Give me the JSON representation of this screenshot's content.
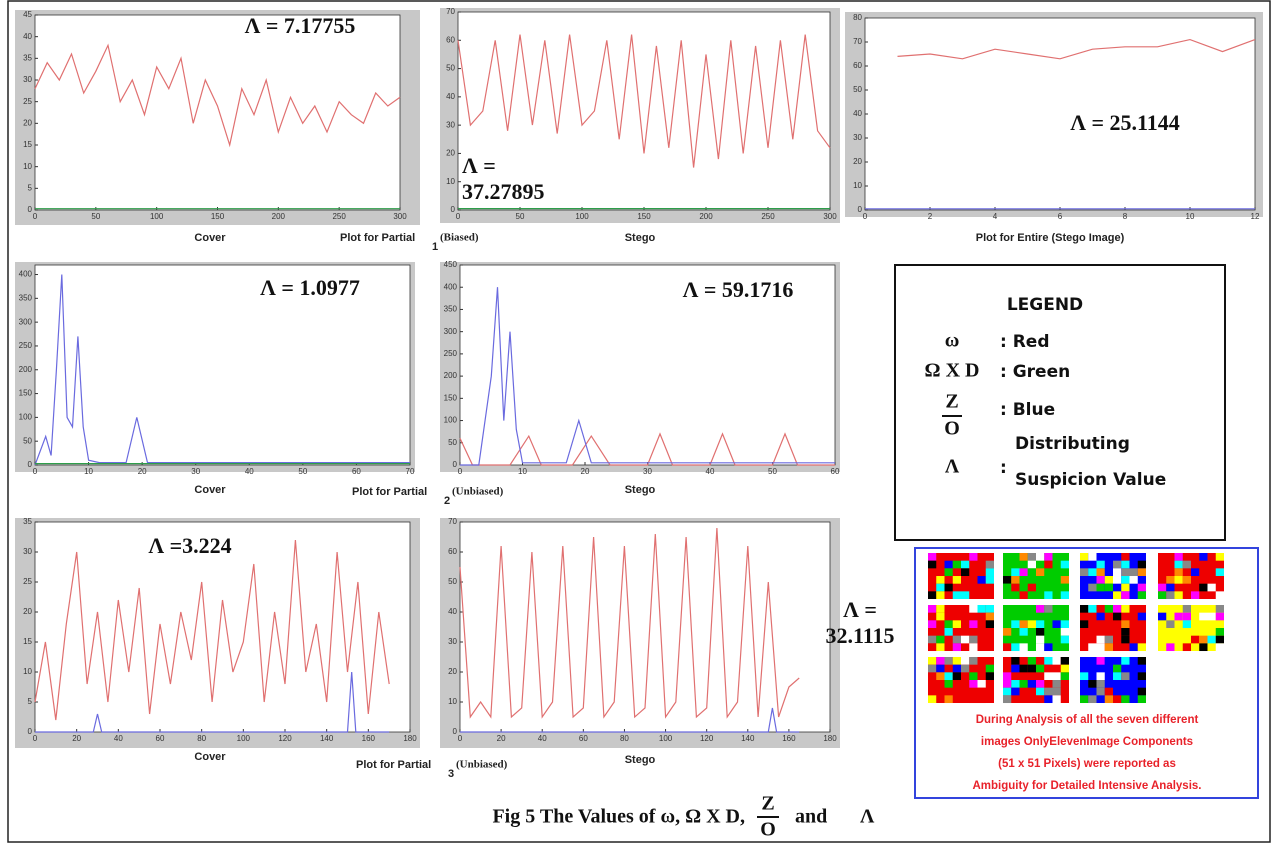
{
  "chart_data": [
    {
      "type": "line",
      "xlabel": "Cover",
      "annotation": [
        "Λ = 7.17755"
      ],
      "xlim": [
        0,
        300
      ],
      "ylim": [
        0,
        45
      ],
      "xticks": [
        0,
        50,
        100,
        150,
        200,
        250,
        300
      ],
      "yticks": [
        0,
        5,
        10,
        15,
        20,
        25,
        30,
        35,
        40,
        45
      ],
      "series": [
        {
          "color": "#e07070",
          "x": [
            0,
            10,
            20,
            30,
            40,
            50,
            60,
            70,
            80,
            90,
            100,
            110,
            120,
            130,
            140,
            150,
            160,
            170,
            180,
            190,
            200,
            210,
            220,
            230,
            240,
            250,
            260,
            270,
            280,
            290,
            300
          ],
          "values": [
            28,
            34,
            30,
            36,
            27,
            32,
            38,
            25,
            30,
            22,
            33,
            28,
            35,
            20,
            30,
            24,
            15,
            28,
            22,
            30,
            18,
            26,
            20,
            24,
            18,
            25,
            22,
            20,
            27,
            24,
            26
          ]
        },
        {
          "color": "#2e9e4a",
          "x": [
            0,
            300
          ],
          "values": [
            0.3,
            0.3
          ]
        }
      ]
    },
    {
      "type": "line",
      "xlabel": "Stego",
      "annotation": [
        "Λ =",
        "37.27895"
      ],
      "xlim": [
        0,
        300
      ],
      "ylim": [
        0,
        70
      ],
      "xticks": [
        0,
        50,
        100,
        150,
        200,
        250,
        300
      ],
      "yticks": [
        0,
        10,
        20,
        30,
        40,
        50,
        60,
        70
      ],
      "series": [
        {
          "color": "#e07070",
          "x": [
            0,
            10,
            20,
            30,
            40,
            50,
            60,
            70,
            80,
            90,
            100,
            110,
            120,
            130,
            140,
            150,
            160,
            170,
            180,
            190,
            200,
            210,
            220,
            230,
            240,
            250,
            260,
            270,
            280,
            290,
            300
          ],
          "values": [
            60,
            30,
            35,
            60,
            28,
            62,
            30,
            60,
            27,
            62,
            30,
            35,
            60,
            25,
            62,
            20,
            58,
            22,
            60,
            15,
            55,
            18,
            60,
            20,
            58,
            22,
            60,
            25,
            62,
            28,
            22
          ]
        },
        {
          "color": "#2e9e4a",
          "x": [
            0,
            300
          ],
          "values": [
            0.5,
            0.5
          ]
        }
      ]
    },
    {
      "type": "line",
      "xlabel": "Plot for Entire (Stego Image)",
      "annotation": [
        "Λ = 25.1144"
      ],
      "xlim": [
        0,
        12
      ],
      "ylim": [
        0,
        80
      ],
      "xticks": [
        0,
        2,
        4,
        6,
        8,
        10,
        12
      ],
      "yticks": [
        0,
        10,
        20,
        30,
        40,
        50,
        60,
        70,
        80
      ],
      "series": [
        {
          "color": "#e07070",
          "x": [
            1,
            2,
            3,
            4,
            5,
            6,
            7,
            8,
            9,
            10,
            11,
            12
          ],
          "values": [
            64,
            65,
            63,
            67,
            65,
            63,
            67,
            68,
            68,
            71,
            66,
            71
          ]
        },
        {
          "color": "#6a6adf",
          "x": [
            0,
            12
          ],
          "values": [
            0.5,
            0.5
          ]
        }
      ]
    },
    {
      "type": "line",
      "xlabel": "Cover",
      "annotation": [
        "Λ = 1.0977"
      ],
      "xlim": [
        0,
        70
      ],
      "ylim": [
        0,
        420
      ],
      "xticks": [
        0,
        10,
        20,
        30,
        40,
        50,
        60,
        70
      ],
      "yticks": [
        0,
        50,
        100,
        150,
        200,
        250,
        300,
        350,
        400
      ],
      "series": [
        {
          "color": "#6a6adf",
          "x": [
            0,
            2,
            3,
            4,
            5,
            6,
            7,
            8,
            9,
            10,
            12,
            17,
            19,
            21,
            25,
            70
          ],
          "values": [
            0,
            60,
            20,
            200,
            400,
            100,
            80,
            270,
            80,
            10,
            5,
            5,
            100,
            5,
            5,
            5
          ]
        },
        {
          "color": "#2e9e4a",
          "x": [
            0,
            70
          ],
          "values": [
            3,
            3
          ]
        }
      ]
    },
    {
      "type": "line",
      "xlabel": "Stego",
      "annotation": [
        "Λ = 59.1716"
      ],
      "xlim": [
        0,
        60
      ],
      "ylim": [
        0,
        450
      ],
      "xticks": [
        0,
        10,
        20,
        30,
        40,
        50,
        60
      ],
      "yticks": [
        0,
        50,
        100,
        150,
        200,
        250,
        300,
        350,
        400,
        450
      ],
      "series": [
        {
          "color": "#e07070",
          "x": [
            0,
            2,
            4,
            8,
            11,
            13,
            15,
            18,
            21,
            24,
            27,
            30,
            32,
            34,
            37,
            40,
            42,
            44,
            47,
            50,
            52,
            54,
            57,
            60
          ],
          "values": [
            60,
            0,
            0,
            0,
            65,
            0,
            0,
            0,
            65,
            0,
            0,
            0,
            70,
            0,
            0,
            0,
            70,
            0,
            0,
            0,
            70,
            0,
            0,
            0
          ]
        },
        {
          "color": "#6a6adf",
          "x": [
            0,
            3,
            5,
            6,
            7,
            8,
            9,
            10,
            12,
            17,
            19,
            21,
            60
          ],
          "values": [
            0,
            0,
            200,
            400,
            100,
            300,
            80,
            5,
            5,
            5,
            100,
            5,
            5
          ]
        }
      ]
    },
    {
      "type": "line",
      "xlabel": "Cover",
      "annotation": [
        "Λ =3.224"
      ],
      "xlim": [
        0,
        180
      ],
      "ylim": [
        0,
        35
      ],
      "xticks": [
        0,
        20,
        40,
        60,
        80,
        100,
        120,
        140,
        160,
        180
      ],
      "yticks": [
        0,
        5,
        10,
        15,
        20,
        25,
        30,
        35
      ],
      "series": [
        {
          "color": "#e07070",
          "x": [
            0,
            5,
            10,
            15,
            20,
            25,
            30,
            35,
            40,
            45,
            50,
            55,
            60,
            65,
            70,
            75,
            80,
            85,
            90,
            95,
            100,
            105,
            110,
            115,
            120,
            125,
            130,
            135,
            140,
            145,
            150,
            155,
            160,
            165,
            170
          ],
          "values": [
            5,
            15,
            2,
            18,
            30,
            8,
            20,
            5,
            22,
            10,
            24,
            3,
            18,
            8,
            20,
            12,
            25,
            5,
            22,
            10,
            15,
            28,
            5,
            20,
            8,
            32,
            10,
            18,
            5,
            30,
            10,
            25,
            3,
            20,
            8
          ]
        },
        {
          "color": "#6a6adf",
          "x": [
            0,
            28,
            30,
            32,
            150,
            152,
            154,
            170
          ],
          "values": [
            0,
            0,
            3,
            0,
            0,
            10,
            0,
            0
          ]
        }
      ]
    },
    {
      "type": "line",
      "xlabel": "Stego",
      "annotation": [
        "Λ =",
        "32.1115"
      ],
      "xlim": [
        0,
        180
      ],
      "ylim": [
        0,
        70
      ],
      "xticks": [
        0,
        20,
        40,
        60,
        80,
        100,
        120,
        140,
        160,
        180
      ],
      "yticks": [
        0,
        10,
        20,
        30,
        40,
        50,
        60,
        70
      ],
      "series": [
        {
          "color": "#e07070",
          "x": [
            0,
            5,
            10,
            15,
            20,
            25,
            30,
            35,
            40,
            45,
            50,
            55,
            60,
            65,
            70,
            75,
            80,
            85,
            90,
            95,
            100,
            105,
            110,
            115,
            120,
            125,
            130,
            135,
            140,
            145,
            150,
            155,
            160,
            165
          ],
          "values": [
            55,
            5,
            10,
            5,
            62,
            5,
            8,
            60,
            5,
            10,
            62,
            5,
            8,
            65,
            5,
            10,
            62,
            5,
            8,
            66,
            5,
            10,
            65,
            5,
            8,
            68,
            5,
            10,
            62,
            5,
            50,
            5,
            15,
            18
          ]
        },
        {
          "color": "#6a6adf",
          "x": [
            0,
            150,
            152,
            154,
            165
          ],
          "values": [
            0,
            0,
            8,
            0,
            0
          ]
        }
      ]
    }
  ],
  "partial_captions": [
    {
      "text": "Plot for Partial",
      "sub": "1",
      "tail": "(Biased)"
    },
    {
      "text": "Plot for Partial",
      "sub": "2",
      "tail": "(Unbiased)"
    },
    {
      "text": "Plot for Partial",
      "sub": "3",
      "tail": "(Unbiased)"
    }
  ],
  "legend": {
    "title": "LEGEND",
    "rows": [
      {
        "symbol": "ω",
        "text": [
          ": Red"
        ]
      },
      {
        "symbol": "Ω X D",
        "text": [
          ": Green"
        ]
      },
      {
        "num": "Z",
        "den": "O",
        "text": [
          ": Blue"
        ]
      },
      {
        "symbol": "Λ",
        "colon": ":",
        "text": [
          "Distributing",
          "Suspicion Value"
        ]
      }
    ]
  },
  "image_panel": {
    "note": [
      "During Analysis of all the seven different",
      "images OnlyElevenImage Components",
      "(51 x 51 Pixels) were reported as",
      "Ambiguity for Detailed Intensive Analysis."
    ]
  },
  "caption": {
    "before": "Fig 5 The Values of ω, Ω X D,",
    "num": "Z",
    "den": "O",
    "after": "and",
    "symbol": "Λ"
  }
}
